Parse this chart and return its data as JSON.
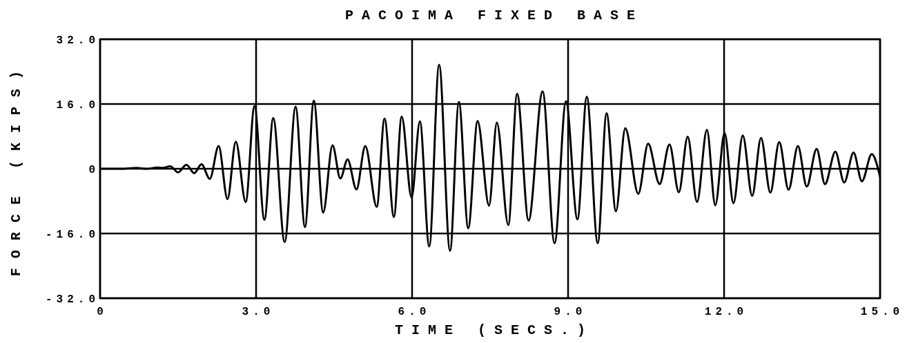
{
  "chart_data": {
    "type": "line",
    "title": "PACOIMA FIXED BASE",
    "xlabel": "TIME (SECS.)",
    "ylabel": "FORCE (KIPS)",
    "x": [
      0,
      0.4,
      0.7,
      0.9,
      1.1,
      1.2,
      1.35,
      1.5,
      1.66,
      1.81,
      1.95,
      2.11,
      2.28,
      2.45,
      2.61,
      2.8,
      2.97,
      3.16,
      3.33,
      3.55,
      3.76,
      3.94,
      4.11,
      4.29,
      4.47,
      4.62,
      4.76,
      4.93,
      5.1,
      5.32,
      5.47,
      5.65,
      5.8,
      5.99,
      6.15,
      6.33,
      6.52,
      6.73,
      6.9,
      7.08,
      7.26,
      7.48,
      7.63,
      7.85,
      8.02,
      8.24,
      8.51,
      8.74,
      8.96,
      9.18,
      9.36,
      9.57,
      9.74,
      9.92,
      10.1,
      10.35,
      10.54,
      10.76,
      10.95,
      11.13,
      11.3,
      11.48,
      11.67,
      11.83,
      12.01,
      12.18,
      12.36,
      12.54,
      12.71,
      12.89,
      13.06,
      13.24,
      13.42,
      13.59,
      13.78,
      13.94,
      14.14,
      14.31,
      14.49,
      14.65,
      14.84,
      15
    ],
    "series": [
      {
        "color": "#000000",
        "values": [
          0,
          0,
          0.2,
          0,
          0.3,
          0.2,
          0.6,
          -0.9,
          1,
          -1.1,
          1.1,
          -2.5,
          5.6,
          -7.5,
          6.7,
          -8.2,
          15.5,
          -12.6,
          12.5,
          -18.1,
          15.3,
          -14.4,
          16.8,
          -10.8,
          5.8,
          -2.4,
          2.3,
          -5.1,
          5.6,
          -9.4,
          12.4,
          -11.9,
          12.9,
          -7.1,
          11.7,
          -19.2,
          25.7,
          -20.3,
          16.5,
          -14.7,
          11.8,
          -9.1,
          11.4,
          -13.9,
          18.5,
          -12.8,
          19.1,
          -18.4,
          16.7,
          -12.5,
          17.8,
          -18.4,
          13.7,
          -10.5,
          10,
          -6.2,
          6.2,
          -3.8,
          6,
          -5.8,
          7.9,
          -8.2,
          9.6,
          -9,
          8.8,
          -8.5,
          8.2,
          -6.7,
          7.6,
          -5.9,
          6.6,
          -5.2,
          5.6,
          -4.4,
          4.9,
          -3.8,
          4.2,
          -3.4,
          4,
          -3.1,
          3.6,
          -2
        ]
      }
    ],
    "xlim": [
      0,
      15
    ],
    "ylim": [
      -32,
      32
    ],
    "xticks": [
      0,
      {
        "value": 3,
        "label": "3.0"
      },
      {
        "value": 6,
        "label": "6.0"
      },
      {
        "value": 9,
        "label": "9.0"
      },
      {
        "value": 12,
        "label": "12.0"
      },
      {
        "value": 15,
        "label": "15.0"
      }
    ],
    "yticks": [
      {
        "value": -32,
        "label": "-32.0"
      },
      {
        "value": -16,
        "label": "-16.0"
      },
      0,
      {
        "value": 16,
        "label": "16.0"
      },
      {
        "value": 32,
        "label": "32.0"
      }
    ],
    "grid": true
  }
}
